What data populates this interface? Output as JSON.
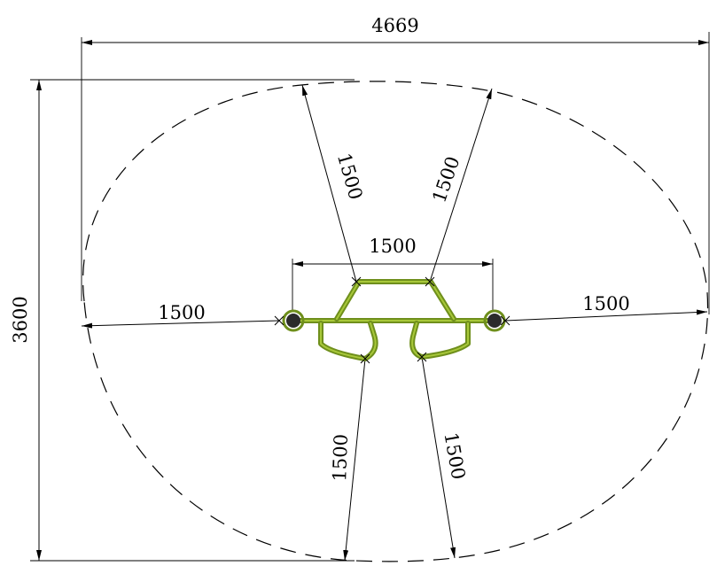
{
  "dimensions": {
    "overall_width": "4669",
    "overall_height": "3600",
    "top_left_radius": "1500",
    "top_right_radius": "1500",
    "center_span": "1500",
    "left_radius": "1500",
    "right_radius": "1500",
    "bottom_left_radius": "1500",
    "bottom_right_radius": "1500"
  },
  "colors": {
    "equipment": "#a8c83a",
    "equipment_dark": "#6f8f1c",
    "post": "#2b2b2b"
  }
}
